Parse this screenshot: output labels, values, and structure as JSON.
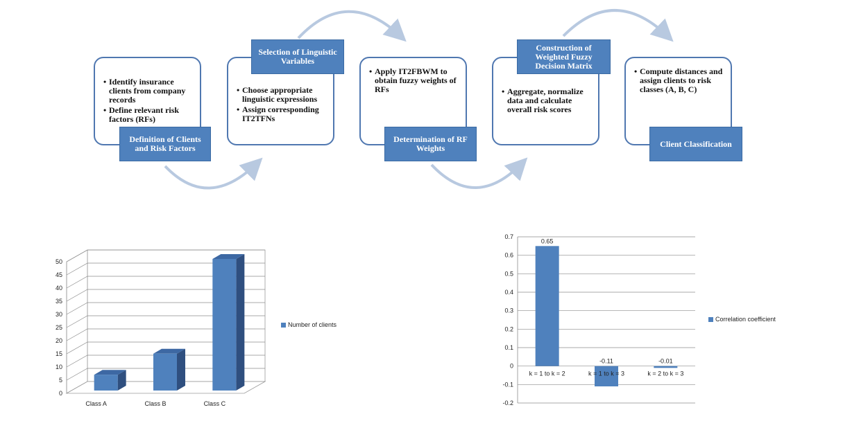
{
  "process": {
    "steps": [
      {
        "label": "Definition of Clients and Risk Factors",
        "bullets": [
          "Identify insurance clients from company records",
          "Define relevant risk factors (RFs)"
        ]
      },
      {
        "label": "Selection of Linguistic Variables",
        "bullets": [
          "Choose appropriate linguistic expressions",
          "Assign corresponding IT2TFNs"
        ]
      },
      {
        "label": "Determination of RF Weights",
        "bullets": [
          "Apply IT2FBWM to obtain fuzzy weights of RFs"
        ]
      },
      {
        "label": "Construction of Weighted Fuzzy Decision Matrix",
        "bullets": [
          "Aggregate, normalize data and calculate overall risk scores"
        ]
      },
      {
        "label": "Client Classification",
        "bullets": [
          "Compute distances and assign clients to risk classes (A, B, C)"
        ]
      }
    ]
  },
  "colors": {
    "accent": "#4f81bd",
    "border": "#4f77b0",
    "arrow": "#b8c9e0"
  },
  "chart_data": [
    {
      "type": "bar",
      "style": "3d",
      "categories": [
        "Class A",
        "Class B",
        "Class C"
      ],
      "series": [
        {
          "name": "Number of clients",
          "values": [
            6,
            14,
            50
          ]
        }
      ],
      "ylim": [
        0,
        50
      ],
      "yticks": [
        0,
        5,
        10,
        15,
        20,
        25,
        30,
        35,
        40,
        45,
        50
      ],
      "grid": true,
      "legend": "right"
    },
    {
      "type": "bar",
      "categories": [
        "k = 1 to k = 2",
        "k = 1 to k = 3",
        "k = 2 to k = 3"
      ],
      "series": [
        {
          "name": "Correlation coefficient",
          "values": [
            0.65,
            -0.11,
            -0.01
          ]
        }
      ],
      "data_labels": [
        "0.65",
        "-0.11",
        "-0.01"
      ],
      "ylim": [
        -0.2,
        0.7
      ],
      "yticks": [
        "-0.2",
        "-0.1",
        "0",
        "0.1",
        "0.2",
        "0.3",
        "0.4",
        "0.5",
        "0.6",
        "0.7"
      ],
      "grid": true,
      "legend": "right"
    }
  ]
}
